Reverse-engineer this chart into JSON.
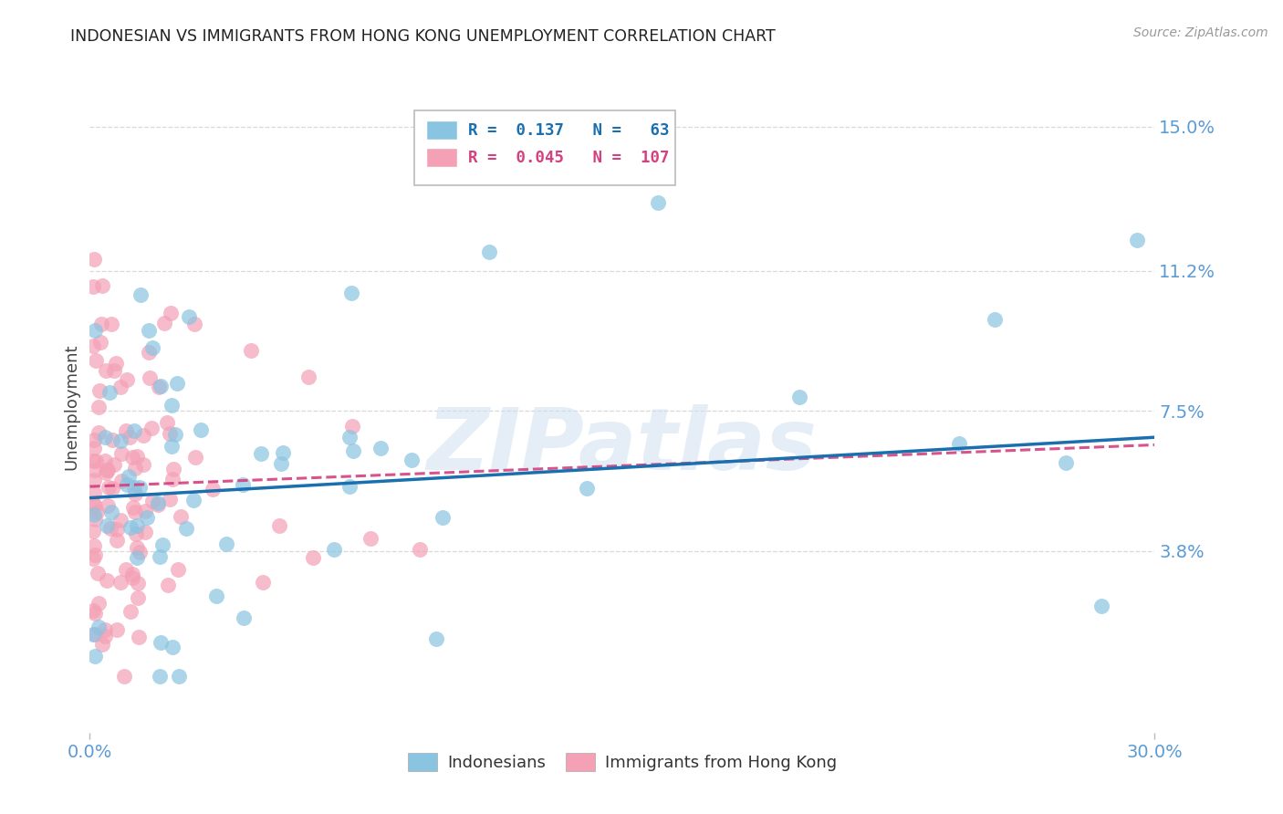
{
  "title": "INDONESIAN VS IMMIGRANTS FROM HONG KONG UNEMPLOYMENT CORRELATION CHART",
  "source": "Source: ZipAtlas.com",
  "ylabel": "Unemployment",
  "ytick_vals": [
    0.0,
    0.038,
    0.075,
    0.112,
    0.15
  ],
  "ytick_labels": [
    "",
    "3.8%",
    "7.5%",
    "11.2%",
    "15.0%"
  ],
  "xmin": 0.0,
  "xmax": 0.3,
  "ymin": -0.01,
  "ymax": 0.162,
  "watermark": "ZIPatlas",
  "blue_color": "#89c4e1",
  "pink_color": "#f4a0b5",
  "blue_line_color": "#1a6faf",
  "pink_line_color": "#d44080",
  "axis_color": "#5b9bd5",
  "grid_color": "#d0d0d0",
  "title_color": "#222222",
  "source_color": "#999999"
}
